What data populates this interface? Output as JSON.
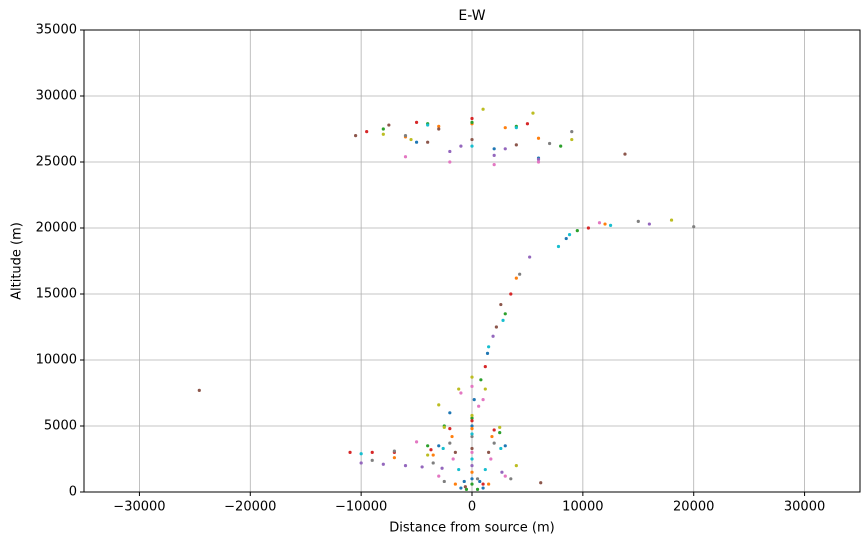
{
  "chart_data": {
    "type": "scatter",
    "title": "E-W",
    "x_label": "Distance from source (m)",
    "y_label": "Altitude (m)",
    "xlim": [
      -35000,
      35000
    ],
    "ylim": [
      0,
      35000
    ],
    "xticks": [
      {
        "value": -30000,
        "label": "−30000"
      },
      {
        "value": -20000,
        "label": "−20000"
      },
      {
        "value": -10000,
        "label": "−10000"
      },
      0,
      10000,
      20000,
      30000
    ],
    "yticks": [
      0,
      5000,
      10000,
      15000,
      20000,
      25000,
      30000,
      35000
    ],
    "grid": true,
    "series": [
      {
        "color": "#1f77b4",
        "x": [
          -1000,
          -700,
          0,
          700,
          1000,
          -3000,
          0,
          3000,
          -2000,
          200,
          1400,
          8500,
          -5000,
          2000,
          6000
        ],
        "y": [
          300,
          800,
          1000,
          800,
          300,
          3500,
          5000,
          3500,
          6000,
          7000,
          10500,
          19200,
          26500,
          26000,
          25300
        ]
      },
      {
        "color": "#ff7f0e",
        "x": [
          -1500,
          0,
          1500,
          -3500,
          -1800,
          0,
          1800,
          -6000,
          -3000,
          0,
          3000,
          6000,
          4000,
          12000,
          -7000
        ],
        "y": [
          600,
          1500,
          600,
          2800,
          4200,
          4800,
          4200,
          26900,
          27700,
          27900,
          27600,
          26800,
          16200,
          20300,
          2600
        ]
      },
      {
        "color": "#2ca02c",
        "x": [
          -500,
          0,
          500,
          -4000,
          -2500,
          0,
          2500,
          800,
          3000,
          9500,
          -8000,
          -4000,
          0,
          4000,
          8000
        ],
        "y": [
          200,
          600,
          200,
          3500,
          5000,
          5600,
          4500,
          8500,
          13500,
          19800,
          27500,
          27900,
          28000,
          27700,
          26200
        ]
      },
      {
        "color": "#d62728",
        "x": [
          -11000,
          -9000,
          -7000,
          -3700,
          -2000,
          0,
          2000,
          1200,
          -9500,
          -5000,
          0,
          5000,
          3500,
          10500,
          1000
        ],
        "y": [
          3000,
          3000,
          3000,
          3200,
          4800,
          5400,
          4700,
          9500,
          27300,
          28000,
          28300,
          27900,
          15000,
          20000,
          600
        ]
      },
      {
        "color": "#9467bd",
        "x": [
          -10000,
          -8000,
          -6000,
          -4500,
          -2700,
          0,
          2700,
          1900,
          -2000,
          2000,
          6000,
          -1000,
          3000,
          16000,
          5200
        ],
        "y": [
          2200,
          2100,
          2000,
          1900,
          1800,
          2000,
          1500,
          11800,
          25800,
          25500,
          25200,
          26200,
          26000,
          20300,
          17800
        ]
      },
      {
        "color": "#8c564b",
        "x": [
          -24600,
          -10500,
          -7500,
          -3000,
          -1500,
          0,
          1500,
          2200,
          -4000,
          0,
          4000,
          13800,
          6200,
          2600,
          -600
        ],
        "y": [
          7700,
          27000,
          27800,
          27500,
          3000,
          3300,
          3000,
          12500,
          26500,
          26700,
          26300,
          25600,
          700,
          14200,
          400
        ]
      },
      {
        "color": "#e377c2",
        "x": [
          -3000,
          -1700,
          0,
          1700,
          3000,
          -5000,
          -1000,
          0,
          1000,
          -6000,
          -2000,
          2000,
          6000,
          11500,
          600
        ],
        "y": [
          1200,
          2500,
          3000,
          2500,
          1200,
          3800,
          7500,
          8000,
          7000,
          25400,
          25000,
          24800,
          25000,
          20400,
          6500
        ]
      },
      {
        "color": "#7f7f7f",
        "x": [
          -3500,
          -2000,
          0,
          2000,
          3500,
          -7000,
          -9000,
          -2500,
          500,
          4300,
          9000,
          -6000,
          7000,
          15000,
          20000
        ],
        "y": [
          2200,
          3700,
          4200,
          3700,
          1000,
          3100,
          2400,
          800,
          1000,
          16500,
          27300,
          27000,
          26400,
          20500,
          20100
        ]
      },
      {
        "color": "#bcbd22",
        "x": [
          -4000,
          -2500,
          0,
          2500,
          4000,
          -3000,
          -1200,
          0,
          1200,
          -8000,
          -5500,
          1000,
          5500,
          9000,
          18000
        ],
        "y": [
          2800,
          4900,
          5800,
          4900,
          2000,
          6600,
          7800,
          8700,
          7800,
          27100,
          26700,
          29000,
          28700,
          26700,
          20600
        ]
      },
      {
        "color": "#17becf",
        "x": [
          -1200,
          0,
          1200,
          -2600,
          0,
          2600,
          1500,
          2800,
          7800,
          8800,
          -4000,
          0,
          4000,
          12500,
          -10000
        ],
        "y": [
          1700,
          2500,
          1700,
          3300,
          4400,
          3300,
          11000,
          13000,
          18600,
          19500,
          27800,
          26200,
          27600,
          20200,
          2900
        ]
      }
    ]
  }
}
